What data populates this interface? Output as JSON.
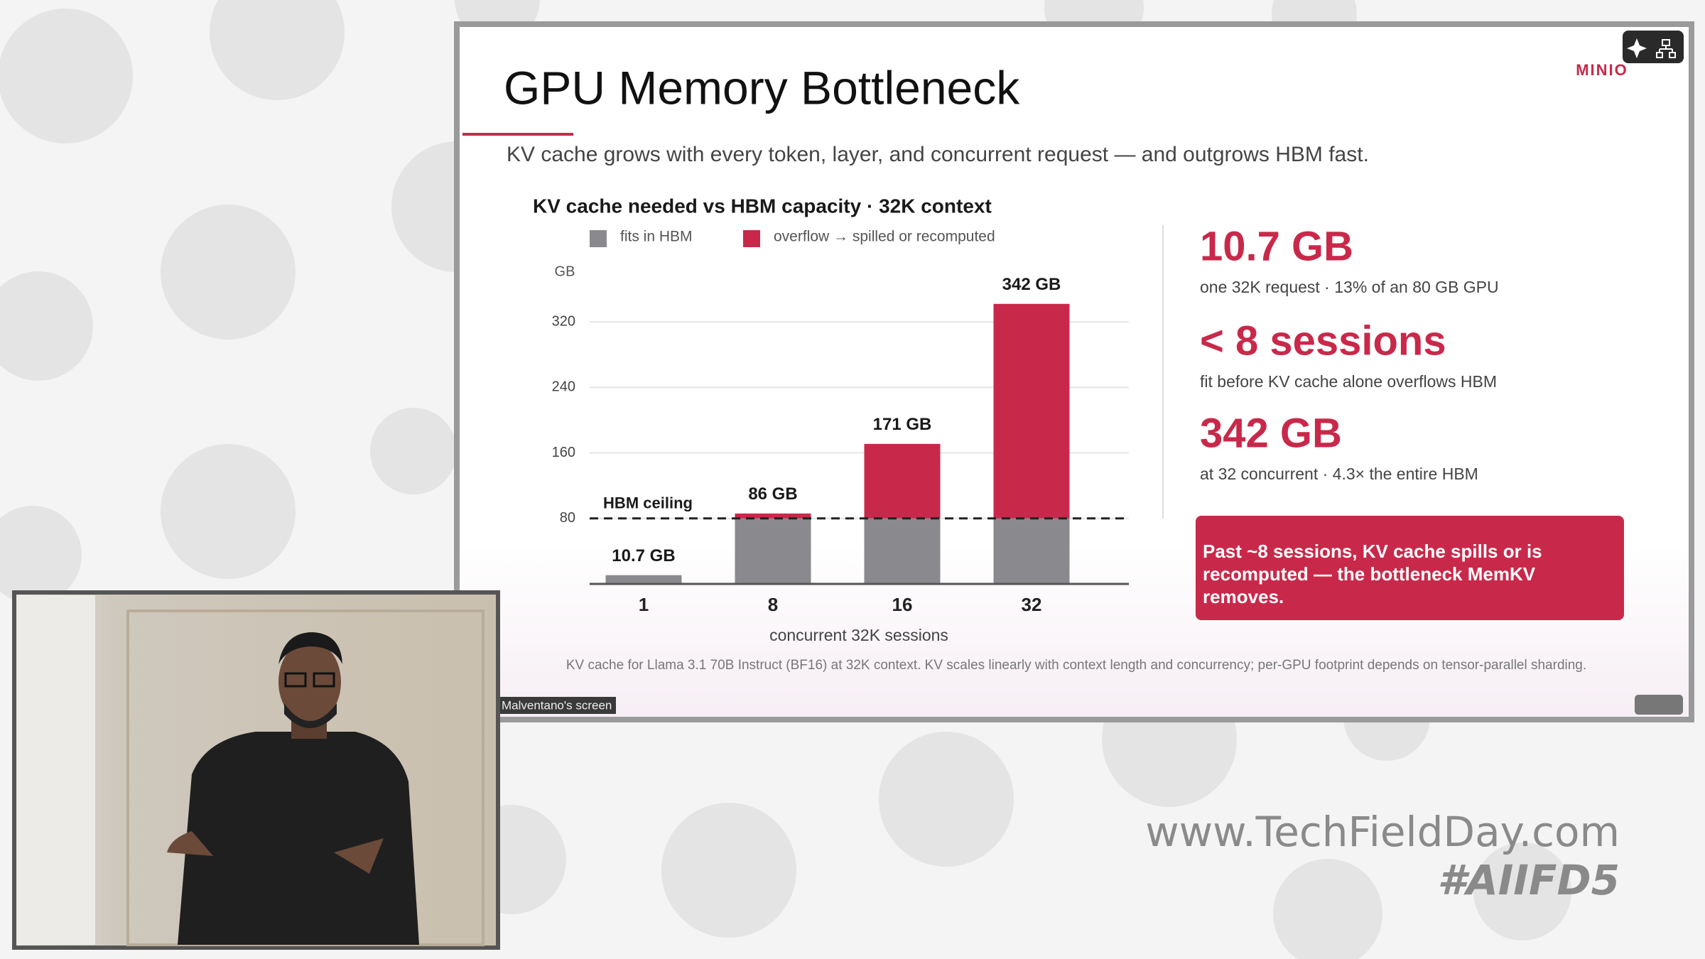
{
  "app": {
    "screen_label": "Malventano's screen"
  },
  "slide": {
    "title": "GPU Memory Bottleneck",
    "subtitle": "KV cache grows with every token, layer, and concurrent request — and outgrows HBM fast.",
    "logo": "MINIO",
    "stats": [
      {
        "value": "10.7 GB",
        "caption": "one 32K request · 13% of an 80 GB GPU"
      },
      {
        "value": "< 8 sessions",
        "caption": "fit before KV cache alone overflows HBM"
      },
      {
        "value": "342 GB",
        "caption": "at 32 concurrent · 4.3× the entire HBM"
      }
    ],
    "callout": "Past ~8 sessions, KV cache spills or is recomputed — the bottleneck MemKV removes.",
    "footnote": "KV cache for Llama 3.1 70B Instruct (BF16) at 32K context. KV scales linearly with context length and concurrency; per-GPU footprint depends on tensor-parallel sharding."
  },
  "chart_data": {
    "type": "bar",
    "stacked": true,
    "title": "KV cache needed vs HBM capacity  ·  32K context",
    "y_unit": "GB",
    "x_label": "concurrent 32K sessions",
    "categories": [
      "1",
      "8",
      "16",
      "32"
    ],
    "series": [
      {
        "name": "fits in HBM",
        "color": "#8a8a8e",
        "values": [
          10.7,
          80,
          80,
          80
        ]
      },
      {
        "name": "overflow → spilled or recomputed",
        "color": "#c8294a",
        "values": [
          0,
          6,
          91,
          262
        ]
      }
    ],
    "totals": [
      10.7,
      86,
      171,
      342
    ],
    "total_labels": [
      "10.7 GB",
      "86 GB",
      "171 GB",
      "342 GB"
    ],
    "reference_line": {
      "label": "HBM ceiling",
      "value": 80
    },
    "ylim": [
      0,
      360
    ],
    "yticks": [
      80,
      160,
      240,
      320
    ],
    "grid": true
  },
  "watermark": {
    "url": "www.TechFieldDay.com",
    "hashtag": "#AIIFD5"
  }
}
